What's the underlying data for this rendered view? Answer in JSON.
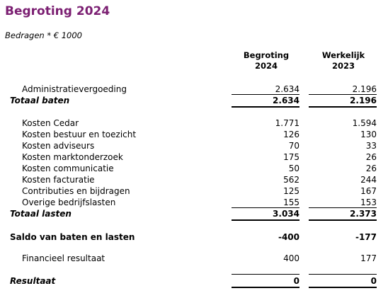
{
  "title": "Begroting 2024",
  "subtitle": "Bedragen * € 1000",
  "columns": [
    {
      "line1": "Begroting",
      "line2": "2024"
    },
    {
      "line1": "Werkelijk",
      "line2": "2023"
    }
  ],
  "baten": {
    "rows": [
      {
        "label": "Administratievergoeding",
        "v2024": "2.634",
        "v2023": "2.196"
      }
    ],
    "total": {
      "label": "Totaal baten",
      "v2024": "2.634",
      "v2023": "2.196"
    }
  },
  "lasten": {
    "rows": [
      {
        "label": "Kosten Cedar",
        "v2024": "1.771",
        "v2023": "1.594"
      },
      {
        "label": "Kosten bestuur en toezicht",
        "v2024": "126",
        "v2023": "130"
      },
      {
        "label": "Kosten adviseurs",
        "v2024": "70",
        "v2023": "33"
      },
      {
        "label": "Kosten marktonderzoek",
        "v2024": "175",
        "v2023": "26"
      },
      {
        "label": "Kosten communicatie",
        "v2024": "50",
        "v2023": "26"
      },
      {
        "label": "Kosten facturatie",
        "v2024": "562",
        "v2023": "244"
      },
      {
        "label": "Contributies en bijdragen",
        "v2024": "125",
        "v2023": "167"
      },
      {
        "label": "Overige bedrijfslasten",
        "v2024": "155",
        "v2023": "153"
      }
    ],
    "total": {
      "label": "Totaal lasten",
      "v2024": "3.034",
      "v2023": "2.373"
    }
  },
  "saldo": {
    "label": "Saldo van baten en lasten",
    "v2024": "-400",
    "v2023": "-177"
  },
  "financieel": {
    "label": "Financieel resultaat",
    "v2024": "400",
    "v2023": "177"
  },
  "resultaat": {
    "label": "Resultaat",
    "v2024": "0",
    "v2023": "0"
  },
  "colors": {
    "title": "#7b1f72"
  }
}
